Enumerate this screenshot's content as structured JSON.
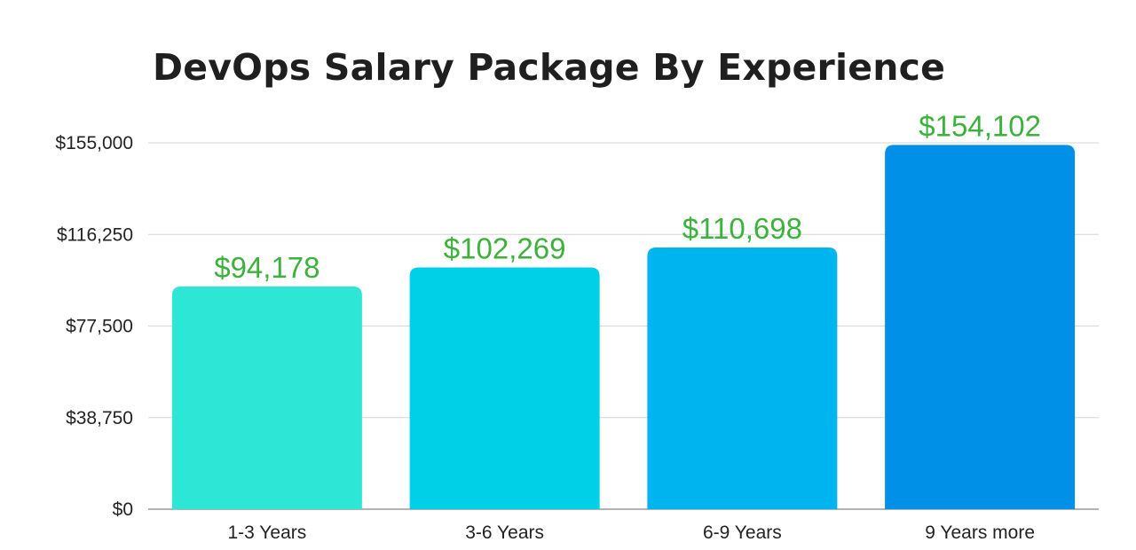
{
  "chart_data": {
    "type": "bar",
    "title": "DevOps Salary Package By Experience",
    "xlabel": "",
    "ylabel": "",
    "categories": [
      "1-3 Years",
      "3-6 Years",
      "6-9 Years",
      "9 Years more"
    ],
    "values": [
      94178,
      102269,
      110698,
      154102
    ],
    "value_labels": [
      "$94,178",
      "$102,269",
      "$110,698",
      "$154,102"
    ],
    "ylim": [
      0,
      155000
    ],
    "yticks": [
      0,
      38750,
      77500,
      116250,
      155000
    ],
    "ytick_labels": [
      "$0",
      "$38,750",
      "$77,500",
      "$116,250",
      "$155,000"
    ],
    "bar_colors": [
      "#2ee6d6",
      "#00cfe8",
      "#00b4f0",
      "#0090e8"
    ],
    "value_label_color": "#3cb23c",
    "grid": true,
    "legend": "none"
  }
}
